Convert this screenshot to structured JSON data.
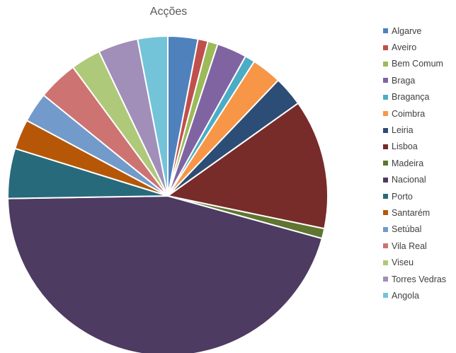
{
  "chart_data": {
    "type": "pie",
    "title": "Acções",
    "legend_position": "right",
    "slices": [
      {
        "label": "Algarve",
        "value": 3.0,
        "color": "#4F81BD"
      },
      {
        "label": "Aveiro",
        "value": 1.0,
        "color": "#C0504D"
      },
      {
        "label": "Bem Comum",
        "value": 1.0,
        "color": "#9BBB59"
      },
      {
        "label": "Braga",
        "value": 3.0,
        "color": "#8064A2"
      },
      {
        "label": "Bragança",
        "value": 1.0,
        "color": "#4BACC6"
      },
      {
        "label": "Coimbra",
        "value": 3.0,
        "color": "#F79646"
      },
      {
        "label": "Leiria",
        "value": 3.0,
        "color": "#2C4D75"
      },
      {
        "label": "Lisboa",
        "value": 13.0,
        "color": "#772C2A"
      },
      {
        "label": "Madeira",
        "value": 1.0,
        "color": "#5F7530"
      },
      {
        "label": "Nacional",
        "value": 45.0,
        "color": "#4D3B62"
      },
      {
        "label": "Porto",
        "value": 5.0,
        "color": "#276A7C"
      },
      {
        "label": "Santarém",
        "value": 3.0,
        "color": "#B65708"
      },
      {
        "label": "Setúbal",
        "value": 3.0,
        "color": "#729ACA"
      },
      {
        "label": "Vila Real",
        "value": 4.0,
        "color": "#CD7371"
      },
      {
        "label": "Viseu",
        "value": 3.0,
        "color": "#AFC97A"
      },
      {
        "label": "Torres Vedras",
        "value": 4.0,
        "color": "#A18EB9"
      },
      {
        "label": "Angola",
        "value": 3.0,
        "color": "#73C4D9"
      }
    ]
  }
}
